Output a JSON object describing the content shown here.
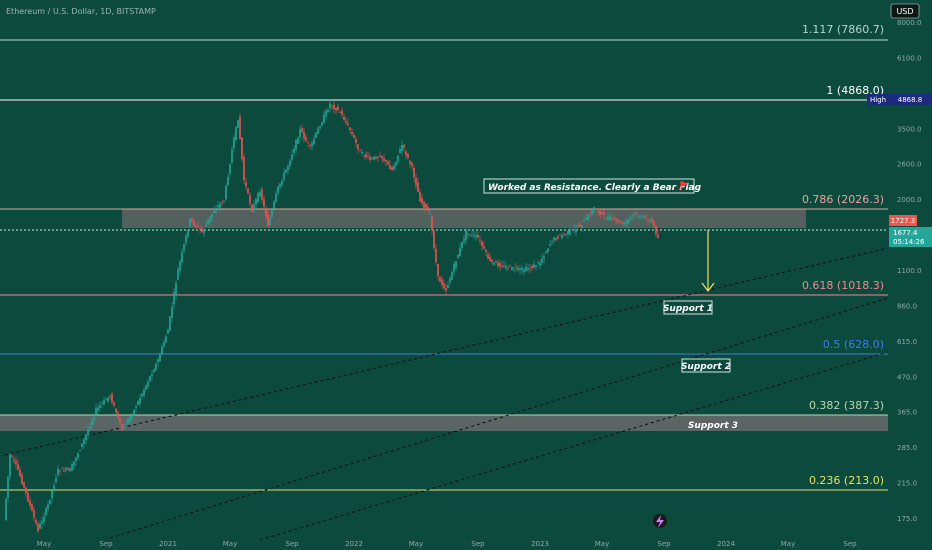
{
  "header": {
    "symbol_title": "Ethereum / U.S. Dollar, 1D, BITSTAMP",
    "currency": "USD"
  },
  "fib_levels": [
    {
      "label": "1.117 (7860.7)",
      "price": 7860.7,
      "color": "#b2d8cc"
    },
    {
      "label": "1 (4868.0)",
      "price": 4868.0,
      "color": "#ffffff"
    },
    {
      "label": "0.786 (2026.3)",
      "price": 2026.3,
      "color": "#e8a39c"
    },
    {
      "label": "0.618 (1018.3)",
      "price": 1018.3,
      "color": "#ef8a8a"
    },
    {
      "label": "0.5 (628.0)",
      "price": 628.0,
      "color": "#3b7ddd"
    },
    {
      "label": "0.382 (387.3)",
      "price": 387.3,
      "color": "#b8d7a8"
    },
    {
      "label": "0.236 (213.0)",
      "price": 213.0,
      "color": "#e6e06a"
    }
  ],
  "zones": [
    {
      "name": "resistance-zone",
      "low": 1640,
      "high": 2026.3
    },
    {
      "name": "support-3-zone",
      "low": 330,
      "high": 387.3
    }
  ],
  "annotations": {
    "resistance_note": "Worked as Resistance. Clearly a Bear Flag",
    "support_1": "Support 1",
    "support_2": "Support 2",
    "support_3": "Support 3"
  },
  "price_badges": {
    "high_label": "High",
    "high_value": "4868.8",
    "badge_1": "1727.3",
    "badge_2_price": "1677.4",
    "badge_2_timer": "05:14:26"
  },
  "price_axis_ticks": [
    "8000.0",
    "6100.0",
    "4500.0",
    "3500.0",
    "2600.0",
    "2000.0",
    "1500.0",
    "1100.0",
    "860.0",
    "615.0",
    "470.0",
    "365.0",
    "285.0",
    "215.0",
    "175.0"
  ],
  "time_axis_ticks": [
    "May",
    "Sep",
    "2021",
    "May",
    "Sep",
    "2022",
    "May",
    "Sep",
    "2023",
    "May",
    "Sep",
    "2024",
    "May",
    "Sep"
  ],
  "colors": {
    "background": "#0d4a3e",
    "up_candle": "#26a69a",
    "down_candle": "#ef5350",
    "arrow": "#f2e35c"
  },
  "icons": {
    "lightning": "lightning-icon",
    "flag": "flag-icon"
  }
}
